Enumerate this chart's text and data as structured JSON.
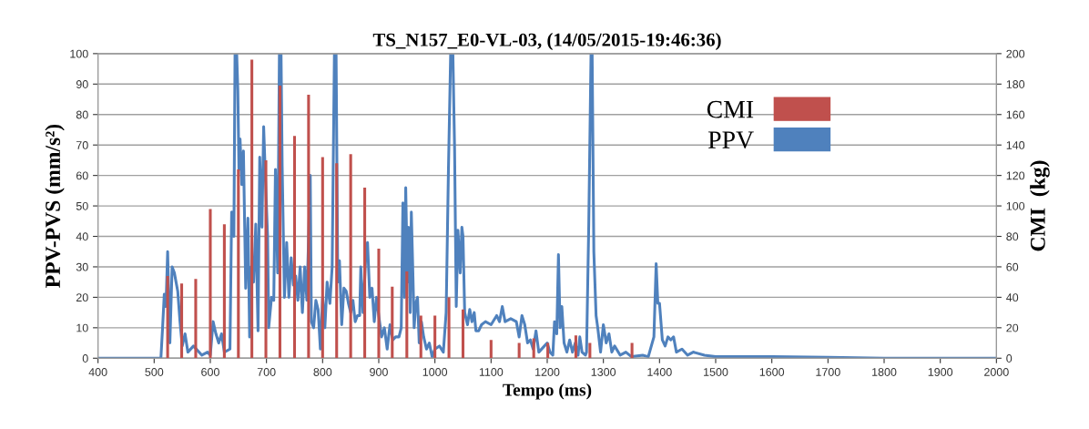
{
  "chart_data": {
    "type": "line",
    "title": "TS_N157_E0-VL-03, (14/05/2015-19:46:36)",
    "xlabel": "Tempo (ms)",
    "ylabel": "PPV-PVS (mm/s²)",
    "y2label": "CMI  (kg)",
    "xlim": [
      400,
      2000
    ],
    "xticks": [
      400,
      500,
      600,
      700,
      800,
      900,
      1000,
      1100,
      1200,
      1300,
      1400,
      1500,
      1600,
      1700,
      1800,
      1900,
      2000
    ],
    "ylim": [
      0,
      100
    ],
    "yticks": [
      0,
      10,
      20,
      30,
      40,
      50,
      60,
      70,
      80,
      90,
      100
    ],
    "y2lim": [
      0,
      200
    ],
    "y2ticks": [
      0,
      20,
      40,
      60,
      80,
      100,
      120,
      140,
      160,
      180,
      200
    ],
    "grid": "y",
    "legend": "top right",
    "marker": "none",
    "line_style": "solid",
    "series": [
      {
        "name": "CMI",
        "type": "bar",
        "axis": "y2",
        "color": "#c0504d",
        "x": [
          524,
          549,
          574,
          600,
          625,
          650,
          674,
          699,
          724,
          750,
          775,
          800,
          825,
          850,
          875,
          900,
          924,
          950,
          975,
          1000,
          1025,
          1050,
          1100,
          1150,
          1176,
          1201,
          1251,
          1276,
          1351
        ],
        "values": [
          54,
          49,
          52,
          98,
          88,
          124,
          196,
          130,
          179,
          146,
          173,
          132,
          128,
          134,
          112,
          72,
          47,
          57,
          28,
          28,
          40,
          32,
          12,
          10,
          13,
          10,
          15,
          10,
          10
        ]
      },
      {
        "name": "PPV",
        "color": "#4f81bd",
        "x": [
          400,
          512,
          515,
          518,
          521,
          524,
          528,
          532,
          536,
          542,
          546,
          550,
          555,
          560,
          570,
          585,
          595,
          600,
          605,
          610,
          615,
          620,
          625,
          635,
          638,
          642,
          644,
          647,
          649,
          651,
          653,
          656,
          659,
          663,
          667,
          670,
          673,
          677,
          681,
          685,
          688,
          692,
          695,
          698,
          702,
          704,
          709,
          713,
          716,
          720,
          723,
          726,
          728,
          732,
          736,
          740,
          744,
          748,
          752,
          756,
          760,
          764,
          768,
          772,
          778,
          780,
          784,
          788,
          792,
          796,
          800,
          804,
          808,
          813,
          817,
          821,
          824,
          827,
          830,
          834,
          838,
          842,
          846,
          850,
          854,
          858,
          862,
          866,
          868,
          872,
          877,
          880,
          884,
          888,
          892,
          896,
          900,
          905,
          910,
          915,
          920,
          925,
          930,
          936,
          940,
          943,
          946,
          948,
          951,
          953,
          956,
          958,
          961,
          963,
          966,
          969,
          972,
          976,
          980,
          985,
          990,
          995,
          1000,
          1008,
          1015,
          1020,
          1024,
          1028,
          1032,
          1035,
          1038,
          1041,
          1045,
          1048,
          1050,
          1053,
          1058,
          1062,
          1066,
          1070,
          1073,
          1078,
          1083,
          1090,
          1100,
          1110,
          1115,
          1120,
          1125,
          1135,
          1145,
          1150,
          1155,
          1160,
          1165,
          1170,
          1175,
          1180,
          1185,
          1195,
          1200,
          1205,
          1210,
          1213,
          1217,
          1220,
          1223,
          1226,
          1230,
          1235,
          1240,
          1245,
          1250,
          1255,
          1258,
          1262,
          1268,
          1270,
          1274,
          1278,
          1280,
          1283,
          1287,
          1290,
          1295,
          1300,
          1305,
          1310,
          1315,
          1320,
          1330,
          1340,
          1350,
          1370,
          1380,
          1390,
          1394,
          1397,
          1400,
          1405,
          1410,
          1415,
          1420,
          1425,
          1430,
          1440,
          1450,
          1460,
          1480,
          1500,
          1600,
          1700,
          1800,
          2000
        ],
        "values": [
          0,
          0,
          10,
          21,
          17,
          35,
          5,
          30,
          28,
          22,
          12,
          4,
          8,
          2,
          4,
          1,
          2,
          1,
          12,
          8,
          5,
          8,
          2,
          3,
          48,
          40,
          100,
          100,
          88,
          62,
          72,
          57,
          68,
          23,
          46,
          7,
          30,
          25,
          44,
          9,
          66,
          43,
          76,
          60,
          40,
          10,
          20,
          19,
          62,
          28,
          100,
          100,
          63,
          20,
          38,
          20,
          33,
          24,
          27,
          19,
          30,
          15,
          30,
          19,
          60,
          12,
          10,
          19,
          16,
          3,
          20,
          10,
          25,
          18,
          30,
          100,
          100,
          25,
          32,
          11,
          23,
          22,
          18,
          15,
          19,
          12,
          14,
          14,
          30,
          15,
          34,
          38,
          20,
          23,
          12,
          20,
          14,
          7,
          10,
          3,
          11,
          6,
          7,
          7,
          10,
          51,
          20,
          56,
          25,
          43,
          15,
          48,
          26,
          10,
          18,
          20,
          5,
          12,
          7,
          3,
          5,
          0.5,
          3,
          4,
          2,
          15,
          61,
          100,
          100,
          69,
          17,
          42,
          28,
          43,
          40,
          15,
          11,
          16,
          12,
          15,
          9,
          9,
          11,
          12,
          11,
          14,
          12,
          17,
          12,
          13,
          12,
          7,
          14,
          11,
          5,
          6,
          3,
          9,
          2,
          4,
          5,
          2,
          1,
          12,
          8,
          34,
          10,
          17,
          5,
          2,
          6,
          2,
          5,
          1,
          7,
          2,
          1,
          2,
          44,
          100,
          100,
          35,
          14,
          10,
          2,
          11,
          5,
          8,
          2,
          4,
          1,
          2,
          0.5,
          1,
          0.5,
          7,
          31,
          18,
          18,
          6,
          4,
          7,
          6,
          7,
          2,
          3,
          1,
          2,
          1,
          0.5,
          0.5,
          0.3,
          0,
          0
        ]
      }
    ]
  }
}
